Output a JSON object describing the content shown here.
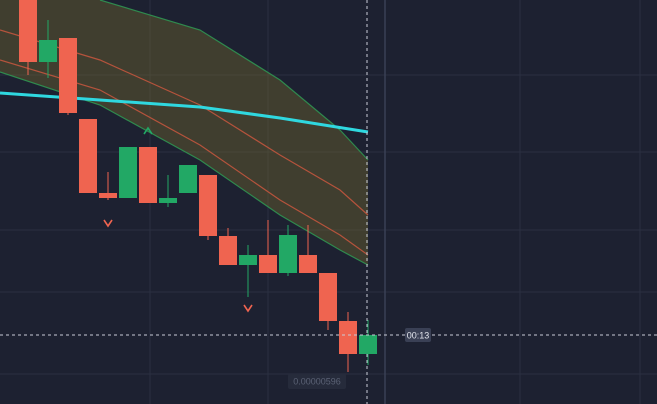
{
  "chart_data": {
    "type": "candlestick",
    "x": [
      0,
      1,
      2,
      3,
      4,
      5,
      6,
      7,
      8,
      9,
      10,
      11,
      12,
      13,
      14,
      15,
      16,
      17
    ],
    "open": [
      404,
      342,
      366,
      285,
      211,
      206,
      257,
      201,
      211,
      229,
      168,
      139,
      149,
      131,
      149,
      131,
      83,
      50
    ],
    "high": [
      404,
      384,
      366,
      285,
      232,
      257,
      257,
      229,
      239,
      229,
      176,
      159,
      184,
      179,
      179,
      131,
      92,
      84
    ],
    "low": [
      329,
      326,
      289,
      211,
      204,
      206,
      201,
      197,
      211,
      164,
      139,
      107,
      131,
      128,
      131,
      74,
      32,
      39
    ],
    "close": [
      342,
      364,
      291,
      211,
      206,
      257,
      201,
      206,
      239,
      168,
      139,
      149,
      131,
      169,
      131,
      83,
      50,
      69
    ],
    "up_color": "#22a865",
    "down_color": "#ef6450",
    "xlim": [
      -1.4,
      31.45
    ],
    "ylim": [
      0,
      404
    ],
    "lines": [
      {
        "name": "upper-band",
        "color": "#2f8a4e",
        "x": [
          3.6,
          8.6,
          12.6,
          15.6,
          17
        ],
        "values": [
          404,
          374,
          324,
          274,
          244
        ]
      },
      {
        "name": "upper-inner",
        "color": "#b5533c",
        "x": [
          -1.4,
          3.6,
          8.6,
          12.6,
          15.6,
          17
        ],
        "values": [
          374,
          344,
          299,
          249,
          214,
          189
        ]
      },
      {
        "name": "lower-inner",
        "color": "#b5533c",
        "x": [
          -1.4,
          3.6,
          8.6,
          12.6,
          15.6,
          17
        ],
        "values": [
          344,
          314,
          259,
          204,
          169,
          149
        ]
      },
      {
        "name": "lower-band",
        "color": "#2f8a4e",
        "x": [
          -1.4,
          3.6,
          8.6,
          12.6,
          15.6,
          17
        ],
        "values": [
          332,
          299,
          244,
          189,
          154,
          139
        ]
      },
      {
        "name": "moving-average",
        "color": "#2fd8e0",
        "x": [
          -1.4,
          3.6,
          8.6,
          12.6,
          17
        ],
        "values": [
          311,
          304,
          297,
          286,
          272
        ]
      }
    ],
    "band_color": "rgba(120,110,45,0.38)",
    "markers": {
      "x": [
        6,
        4,
        11
      ],
      "values": [
        273,
        181,
        96
      ],
      "direction": [
        "up",
        "down",
        "down"
      ]
    },
    "price_line": 69,
    "timer_label": "00:13",
    "crosshair_label": "0.00000596"
  }
}
